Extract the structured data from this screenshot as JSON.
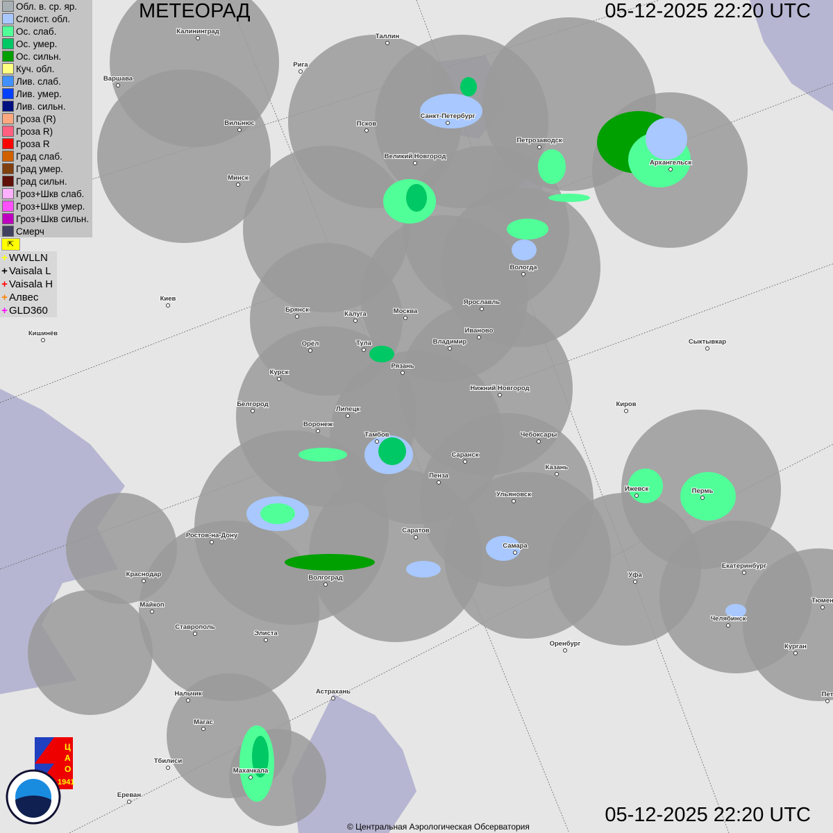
{
  "title": "МЕТЕОРАД",
  "datetime_top": "05-12-2025  22:20 UTC",
  "datetime_bottom": "05-12-2025  22:20 UTC",
  "copyright": "© Центральная Аэрологическая Обсерватория",
  "legend": [
    {
      "label": "Обл. в. ср. яр.",
      "color": "#a8b0b4"
    },
    {
      "label": "Слоист. обл.",
      "color": "#a8c8ff"
    },
    {
      "label": "Ос. слаб.",
      "color": "#50ff98"
    },
    {
      "label": "Ос. умер.",
      "color": "#00c864"
    },
    {
      "label": "Ос. сильн.",
      "color": "#00a000"
    },
    {
      "label": "Куч. обл.",
      "color": "#ffff80"
    },
    {
      "label": "Лив. слаб.",
      "color": "#4090ff"
    },
    {
      "label": "Лив. умер.",
      "color": "#0040ff"
    },
    {
      "label": "Лив. сильн.",
      "color": "#001080"
    },
    {
      "label": "Гроза (R)",
      "color": "#ffa880"
    },
    {
      "label": "Гроза R)",
      "color": "#ff6080"
    },
    {
      "label": "Гроза R",
      "color": "#ff0000"
    },
    {
      "label": "Град слаб.",
      "color": "#d06000"
    },
    {
      "label": "Град умер.",
      "color": "#804010"
    },
    {
      "label": "Град сильн.",
      "color": "#601008"
    },
    {
      "label": "Гроз+Шкв слаб.",
      "color": "#ffb0ff"
    },
    {
      "label": "Гроз+Шкв умер.",
      "color": "#ff50ff"
    },
    {
      "label": "Гроз+Шкв сильн.",
      "color": "#c000c0"
    },
    {
      "label": "Смерч",
      "color": "#404060"
    }
  ],
  "lightning": [
    {
      "label": "WWLLN",
      "color": "#ffff00"
    },
    {
      "label": "Vaisala L",
      "color": "#000000"
    },
    {
      "label": "Vaisala H",
      "color": "#ff0000"
    },
    {
      "label": "Алвес",
      "color": "#ff8000"
    },
    {
      "label": "GLD360",
      "color": "#ff00ff"
    }
  ],
  "flag_icon": "corner-arrow-icon",
  "logos": {
    "cao": "ЦАО 1941",
    "roshydromet": "РОСГИДРОМЕТ ROSHYDROMET"
  },
  "cities": [
    "Калининград",
    "Таллин",
    "Рига",
    "Варшава",
    "Вильнюс",
    "Псков",
    "Санкт-Петербург",
    "Петрозаводск",
    "Архангельск",
    "Великий Новгород",
    "Минск",
    "Вологда",
    "Киев",
    "Брянск",
    "Калуга",
    "Москва",
    "Ярославль",
    "Иваново",
    "Кишинёв",
    "Орёл",
    "Тула",
    "Владимир",
    "Рязань",
    "Сыктывкар",
    "Курск",
    "Нижний Новгород",
    "Белгород",
    "Липецк",
    "Киров",
    "Воронеж",
    "Тамбов",
    "Чебоксары",
    "Саранск",
    "Казань",
    "Пенза",
    "Ижевск",
    "Пермь",
    "Ульяновск",
    "Ростов-на-Дону",
    "Саратов",
    "Самара",
    "Краснодар",
    "Волгоград",
    "Уфа",
    "Екатеринбург",
    "Майкоп",
    "Ставрополь",
    "Элиста",
    "Челябинск",
    "Оренбург",
    "Курган",
    "Тюмен",
    "Нальчик",
    "Астрахань",
    "Магас",
    "Тбилиси",
    "Махачкала",
    "Ереван",
    "Пет"
  ]
}
